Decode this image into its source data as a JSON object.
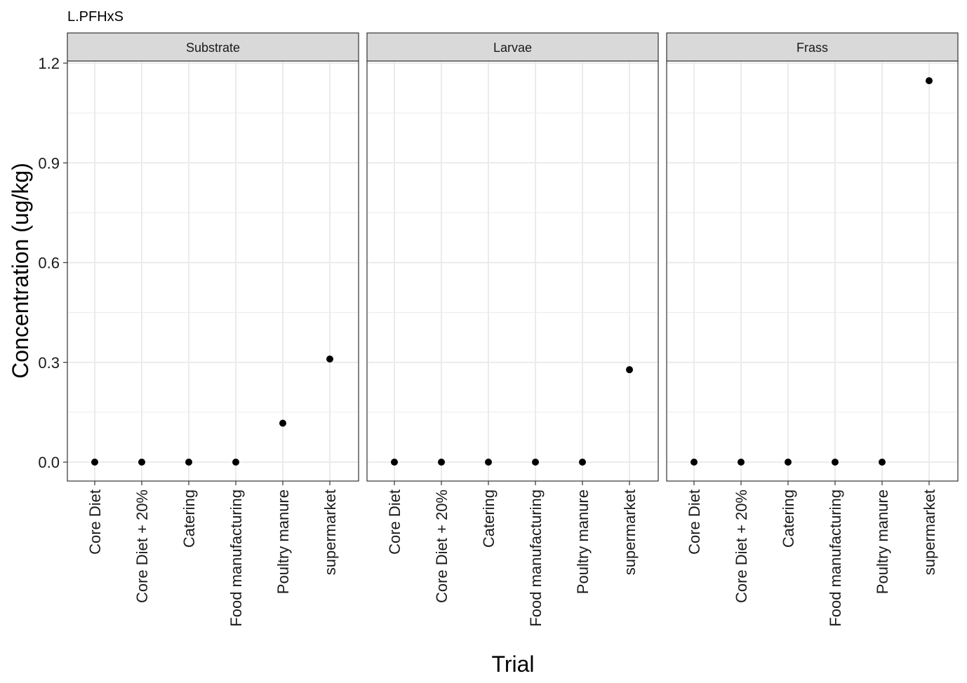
{
  "chart_data": {
    "type": "scatter",
    "title": "L.PFHxS",
    "xlabel": "Trial",
    "ylabel": "Concentration (ug/kg)",
    "categories": [
      "Core Diet",
      "Core Diet + 20%",
      "Catering",
      "Food manufacturing",
      "Poultry manure",
      "supermarket"
    ],
    "ylim": [
      -0.037,
      1.24
    ],
    "yticks": [
      "0.0",
      "0.3",
      "0.6",
      "0.9",
      "1.2"
    ],
    "grid": true,
    "facets": [
      {
        "name": "Substrate",
        "values": [
          0,
          0,
          0,
          0,
          0.117,
          0.31
        ]
      },
      {
        "name": "Larvae",
        "values": [
          0,
          0,
          0,
          0,
          0,
          0.278
        ]
      },
      {
        "name": "Frass",
        "values": [
          0,
          0,
          0,
          0,
          0,
          1.147
        ]
      }
    ],
    "colors": {
      "point": "#000000",
      "strip_fill": "#d9d9d9",
      "grid": "#ebebeb",
      "border": "#333333"
    }
  }
}
